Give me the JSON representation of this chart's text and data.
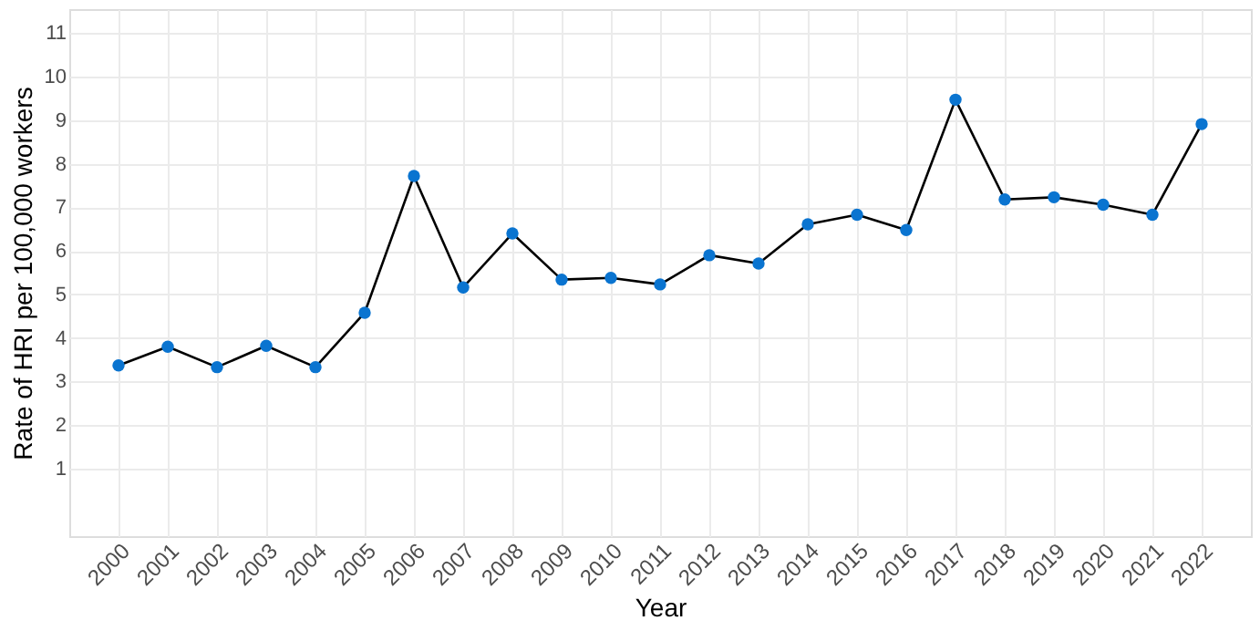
{
  "chart_data": {
    "type": "line",
    "xlabel": "Year",
    "ylabel": "Rate of HRI per 100,000 workers",
    "categories": [
      "2000",
      "2001",
      "2002",
      "2003",
      "2004",
      "2005",
      "2006",
      "2007",
      "2008",
      "2009",
      "2010",
      "2011",
      "2012",
      "2013",
      "2014",
      "2015",
      "2016",
      "2017",
      "2018",
      "2019",
      "2020",
      "2021",
      "2022"
    ],
    "series": [
      {
        "color": "#000000",
        "values": [
          3.37,
          3.8,
          3.33,
          3.82,
          3.33,
          4.58,
          7.72,
          5.16,
          6.4,
          5.34,
          5.38,
          5.23,
          5.9,
          5.71,
          6.61,
          6.83,
          6.48,
          9.47,
          7.18,
          7.23,
          7.06,
          6.83,
          8.91
        ]
      },
      {
        "type": "scatter",
        "color": "#0a74d0",
        "marker": "circle",
        "values": [
          3.37,
          3.8,
          3.33,
          3.82,
          3.33,
          4.58,
          7.72,
          5.16,
          6.4,
          5.34,
          5.38,
          5.23,
          5.9,
          5.71,
          6.61,
          6.83,
          6.48,
          9.47,
          7.18,
          7.23,
          7.06,
          6.83,
          8.91
        ]
      }
    ],
    "ylim": [
      -0.55,
      11.55
    ],
    "yticks": [
      1,
      2,
      3,
      4,
      5,
      6,
      7,
      8,
      9,
      10,
      11
    ],
    "grid": true,
    "line_style": "solid"
  }
}
